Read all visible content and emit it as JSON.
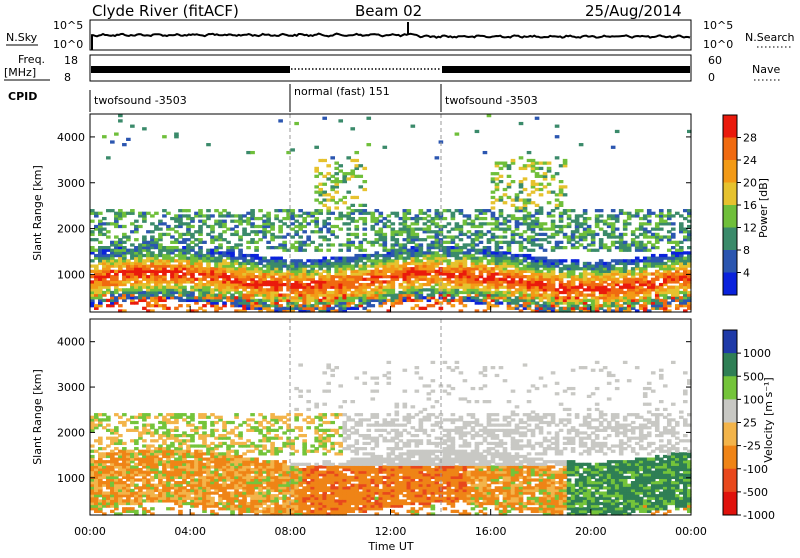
{
  "header": {
    "station": "Clyde River (fitACF)",
    "beam": "Beam 02",
    "date": "25/Aug/2014"
  },
  "noise_panel": {
    "left_label": "N.Sky",
    "right_label": "N.Search",
    "left_ticks": [
      "10^5",
      "10^0"
    ],
    "right_ticks": [
      "10^5",
      "10^0"
    ]
  },
  "freq_panel": {
    "left_label_1": "Freq.",
    "left_label_2": "[MHz]",
    "right_label": "Nave",
    "left_ticks": [
      "18",
      "8"
    ],
    "right_ticks": [
      "60",
      "0"
    ]
  },
  "cpid_panel": {
    "label": "CPID",
    "segments": [
      {
        "name": "twofsound -3503",
        "start_hour": 0,
        "end_hour": 8
      },
      {
        "name": "normal (fast) 151",
        "start_hour": 8,
        "end_hour": 14
      },
      {
        "name": "twofsound -3503",
        "start_hour": 14,
        "end_hour": 24
      }
    ]
  },
  "chart_data": [
    {
      "type": "heatmap",
      "name": "power",
      "ylabel": "Slant Range [km]",
      "x_range_hours": [
        0,
        24
      ],
      "ylim": [
        180,
        4500
      ],
      "y_ticks": [
        1000,
        2000,
        3000,
        4000
      ],
      "colorbar": {
        "label": "Power [dB]",
        "ticks": [
          "4",
          "8",
          "12",
          "16",
          "20",
          "24",
          "28"
        ],
        "range": [
          0,
          32
        ]
      },
      "colors": [
        "#0a22dc",
        "#2b56b0",
        "#3a8a6a",
        "#6fbf3a",
        "#e6c22e",
        "#f39a16",
        "#f06a10",
        "#ea1a0c"
      ]
    },
    {
      "type": "heatmap",
      "name": "velocity",
      "ylabel": "Slant Range [km]",
      "xlabel": "Time UT",
      "x_ticks": [
        "00:00",
        "04:00",
        "08:00",
        "12:00",
        "16:00",
        "20:00",
        "00:00"
      ],
      "x_range_hours": [
        0,
        24
      ],
      "ylim": [
        180,
        4500
      ],
      "y_ticks": [
        1000,
        2000,
        3000,
        4000
      ],
      "colorbar": {
        "label": "Velocity [m s⁻¹]",
        "ticks": [
          "1000",
          "500",
          "100",
          "25",
          "-25",
          "-100",
          "-500",
          "-1000"
        ]
      },
      "colors": [
        "#1f3aa8",
        "#2f7f55",
        "#74c43a",
        "#c8c8c4",
        "#f3b44a",
        "#ef8416",
        "#e8481c",
        "#e0120c"
      ]
    }
  ]
}
